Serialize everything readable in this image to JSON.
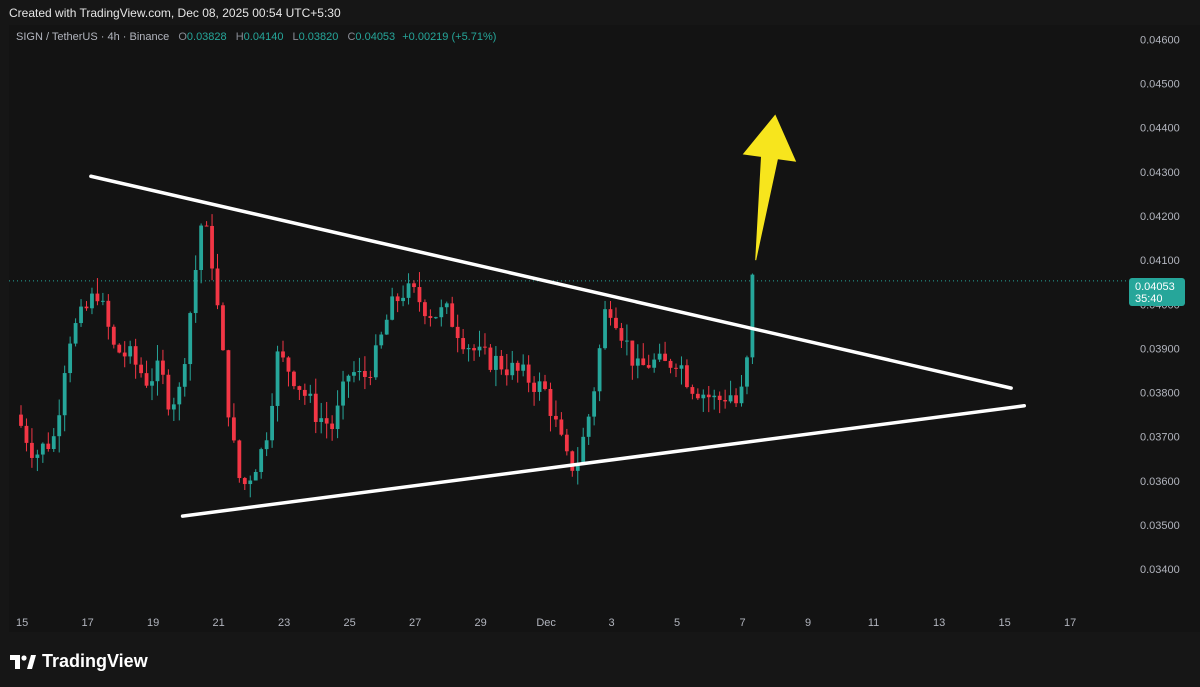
{
  "header": {
    "created_text": "Created with TradingView.com, Dec 08, 2025 00:54 UTC+5:30"
  },
  "legend": {
    "symbol": "SIGN / TetherUS · 4h · Binance",
    "open_label": "O",
    "open": "0.03828",
    "high_label": "H",
    "high": "0.04140",
    "low_label": "L",
    "low": "0.03820",
    "close_label": "C",
    "close": "0.04053",
    "change": "+0.00219 (+5.71%)"
  },
  "price_tag": {
    "price": "0.04053",
    "countdown": "35:40"
  },
  "brand": {
    "name": "TradingView"
  },
  "colors": {
    "up": "#26a69a",
    "down": "#f23645",
    "background": "#131313",
    "trendline": "#ffffff",
    "arrow": "#f7e51d"
  },
  "chart_data": {
    "type": "candlestick",
    "title": "SIGN / TetherUS · 4h · Binance",
    "xlabel": "",
    "ylabel": "",
    "ylim": [
      0.0333,
      0.0461
    ],
    "x_ticks": [
      "15",
      "17",
      "19",
      "21",
      "23",
      "25",
      "27",
      "29",
      "Dec",
      "3",
      "5",
      "7",
      "9",
      "11",
      "13",
      "15",
      "17"
    ],
    "y_ticks": [
      "0.03400",
      "0.03500",
      "0.03600",
      "0.03700",
      "0.03800",
      "0.03900",
      "0.04000",
      "0.04100",
      "0.04200",
      "0.04300",
      "0.04400",
      "0.04500",
      "0.04600"
    ],
    "last_price": 0.04053,
    "grid": false,
    "anchor_points": [
      {
        "day": 14.8,
        "price": 0.0375
      },
      {
        "day": 15.4,
        "price": 0.0366
      },
      {
        "day": 16.0,
        "price": 0.037
      },
      {
        "day": 16.4,
        "price": 0.0392
      },
      {
        "day": 16.9,
        "price": 0.0398
      },
      {
        "day": 17.3,
        "price": 0.0403
      },
      {
        "day": 17.8,
        "price": 0.039
      },
      {
        "day": 18.3,
        "price": 0.0388
      },
      {
        "day": 18.8,
        "price": 0.0383
      },
      {
        "day": 19.2,
        "price": 0.0385
      },
      {
        "day": 19.5,
        "price": 0.0378
      },
      {
        "day": 19.8,
        "price": 0.038
      },
      {
        "day": 20.2,
        "price": 0.0402
      },
      {
        "day": 20.5,
        "price": 0.042
      },
      {
        "day": 20.8,
        "price": 0.041
      },
      {
        "day": 21.1,
        "price": 0.039
      },
      {
        "day": 21.4,
        "price": 0.037
      },
      {
        "day": 21.7,
        "price": 0.0358
      },
      {
        "day": 22.0,
        "price": 0.0362
      },
      {
        "day": 22.4,
        "price": 0.0368
      },
      {
        "day": 22.8,
        "price": 0.0388
      },
      {
        "day": 23.2,
        "price": 0.0385
      },
      {
        "day": 23.6,
        "price": 0.038
      },
      {
        "day": 24.0,
        "price": 0.0375
      },
      {
        "day": 24.5,
        "price": 0.0372
      },
      {
        "day": 25.0,
        "price": 0.0385
      },
      {
        "day": 25.4,
        "price": 0.0383
      },
      {
        "day": 25.8,
        "price": 0.0388
      },
      {
        "day": 26.2,
        "price": 0.0398
      },
      {
        "day": 26.6,
        "price": 0.0403
      },
      {
        "day": 27.0,
        "price": 0.0402
      },
      {
        "day": 27.5,
        "price": 0.0398
      },
      {
        "day": 28.0,
        "price": 0.0398
      },
      {
        "day": 28.5,
        "price": 0.0392
      },
      {
        "day": 29.0,
        "price": 0.0388
      },
      {
        "day": 29.5,
        "price": 0.0387
      },
      {
        "day": 30.0,
        "price": 0.0385
      },
      {
        "day": 30.5,
        "price": 0.0383
      },
      {
        "day": 31.0,
        "price": 0.038
      },
      {
        "day": 31.4,
        "price": 0.037
      },
      {
        "day": 31.7,
        "price": 0.0363
      },
      {
        "day": 32.0,
        "price": 0.0365
      },
      {
        "day": 32.4,
        "price": 0.0378
      },
      {
        "day": 32.8,
        "price": 0.0398
      },
      {
        "day": 33.0,
        "price": 0.04
      },
      {
        "day": 33.4,
        "price": 0.0392
      },
      {
        "day": 33.8,
        "price": 0.0385
      },
      {
        "day": 34.2,
        "price": 0.0387
      },
      {
        "day": 34.6,
        "price": 0.0386
      },
      {
        "day": 35.0,
        "price": 0.0388
      },
      {
        "day": 35.4,
        "price": 0.0382
      },
      {
        "day": 35.8,
        "price": 0.038
      },
      {
        "day": 36.2,
        "price": 0.0378
      },
      {
        "day": 36.6,
        "price": 0.038
      },
      {
        "day": 36.85,
        "price": 0.0377
      },
      {
        "day": 37.1,
        "price": 0.0383
      },
      {
        "day": 37.3,
        "price": 0.04053
      }
    ],
    "trendlines": [
      {
        "name": "upper",
        "from": {
          "day": 17.1,
          "price": 0.0429
        },
        "to": {
          "day": 45.2,
          "price": 0.0381
        }
      },
      {
        "name": "lower",
        "from": {
          "day": 19.9,
          "price": 0.0352
        },
        "to": {
          "day": 45.6,
          "price": 0.0377
        }
      }
    ],
    "arrow": {
      "from": {
        "day": 37.4,
        "price": 0.041
      },
      "to": {
        "day": 38.0,
        "price": 0.0443
      }
    }
  }
}
